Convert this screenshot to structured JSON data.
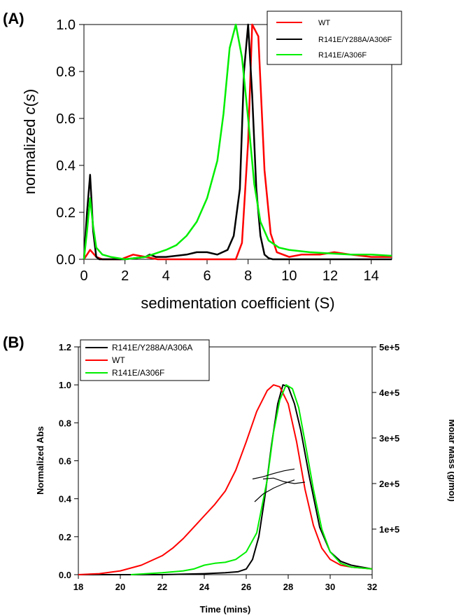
{
  "chart_data": [
    {
      "panel_label": "(A)",
      "type": "line",
      "xlabel": "sedimentation coefficient (S)",
      "ylabel_prefix": "normalized ",
      "ylabel_italic": "c",
      "ylabel_paren_open": "(",
      "ylabel_s": "s",
      "ylabel_paren_close": ")",
      "xlim": [
        0,
        15
      ],
      "ylim": [
        0,
        1.0
      ],
      "xticks": [
        "0",
        "2",
        "4",
        "6",
        "8",
        "10",
        "12",
        "14"
      ],
      "xtick_values": [
        0,
        2,
        4,
        6,
        8,
        10,
        12,
        14
      ],
      "yticks": [
        "0.0",
        "0.2",
        "0.4",
        "0.6",
        "0.8",
        "1.0"
      ],
      "ytick_values": [
        0,
        0.2,
        0.4,
        0.6,
        0.8,
        1.0
      ],
      "legend_position": "top-right",
      "series": [
        {
          "name": "WT",
          "color": "#ff0000",
          "x": [
            0,
            0.3,
            0.6,
            0.9,
            1.2,
            1.8,
            2.4,
            3.0,
            3.6,
            4.2,
            4.8,
            5.4,
            6.0,
            6.6,
            7.0,
            7.4,
            7.7,
            8.0,
            8.2,
            8.5,
            8.8,
            9.1,
            9.4,
            10.0,
            10.6,
            11.5,
            12.2,
            13.0,
            14.0,
            15.0
          ],
          "y": [
            0.0,
            0.04,
            0.01,
            0.0,
            0.0,
            0.0,
            0.02,
            0.01,
            0.0,
            0.0,
            0.0,
            0.0,
            0.0,
            0.0,
            0.0,
            0.0,
            0.07,
            0.5,
            1.0,
            0.95,
            0.38,
            0.11,
            0.03,
            0.01,
            0.02,
            0.02,
            0.03,
            0.02,
            0.01,
            0.01
          ]
        },
        {
          "name": "R141E/Y288A/A306F",
          "color": "#000000",
          "x": [
            0,
            0.15,
            0.3,
            0.45,
            0.6,
            0.75,
            1.0,
            2.0,
            3.0,
            3.2,
            3.5,
            4.0,
            5.0,
            5.5,
            6.0,
            6.5,
            7.0,
            7.3,
            7.6,
            7.8,
            8.0,
            8.2,
            8.4,
            8.6,
            8.8,
            9.0,
            9.2,
            9.5,
            10.0,
            15.0
          ],
          "y": [
            0.0,
            0.2,
            0.36,
            0.12,
            0.01,
            0.0,
            0.0,
            0.0,
            0.01,
            0.02,
            0.01,
            0.01,
            0.02,
            0.03,
            0.03,
            0.02,
            0.04,
            0.1,
            0.3,
            0.8,
            1.0,
            0.7,
            0.3,
            0.1,
            0.02,
            0.005,
            0.0,
            0.0,
            0.0,
            0.0
          ]
        },
        {
          "name": "R141E/A306F",
          "color": "#00ee00",
          "x": [
            0,
            0.15,
            0.3,
            0.45,
            0.6,
            0.9,
            1.3,
            2.0,
            3.0,
            4.0,
            4.5,
            5.0,
            5.5,
            6.0,
            6.5,
            6.8,
            7.1,
            7.4,
            7.7,
            8.0,
            8.3,
            8.6,
            9.0,
            9.5,
            10.0,
            11.0,
            12.0,
            13.0,
            14.0,
            15.0
          ],
          "y": [
            0.0,
            0.12,
            0.26,
            0.14,
            0.05,
            0.02,
            0.01,
            0.0,
            0.01,
            0.04,
            0.06,
            0.1,
            0.16,
            0.26,
            0.42,
            0.62,
            0.9,
            1.0,
            0.86,
            0.6,
            0.32,
            0.16,
            0.08,
            0.05,
            0.04,
            0.03,
            0.025,
            0.02,
            0.02,
            0.015
          ]
        }
      ]
    },
    {
      "panel_label": "(B)",
      "type": "line",
      "xlabel": "Time (mins)",
      "ylabel": "Normalized Abs",
      "y2label": "Molar Mass (g/mol)",
      "xlim": [
        18,
        32
      ],
      "ylim": [
        0,
        1.2
      ],
      "y2lim": [
        0,
        500000
      ],
      "xticks": [
        "18",
        "20",
        "22",
        "24",
        "26",
        "28",
        "30",
        "32"
      ],
      "xtick_values": [
        18,
        20,
        22,
        24,
        26,
        28,
        30,
        32
      ],
      "yticks": [
        "0.0",
        "0.2",
        "0.4",
        "0.6",
        "0.8",
        "1.0",
        "1.2"
      ],
      "ytick_values": [
        0,
        0.2,
        0.4,
        0.6,
        0.8,
        1.0,
        1.2
      ],
      "y2ticks": [
        "1e+5",
        "2e+5",
        "3e+5",
        "4e+5",
        "5e+5"
      ],
      "y2tick_values": [
        100000,
        200000,
        300000,
        400000,
        500000
      ],
      "legend_position": "top-left",
      "series": [
        {
          "name": "R141E/Y288A/A306A",
          "color": "#000000",
          "x": [
            18,
            22,
            24,
            25,
            25.6,
            26.0,
            26.3,
            26.6,
            26.9,
            27.2,
            27.5,
            27.75,
            28.0,
            28.3,
            28.6,
            29.0,
            29.5,
            30.0,
            30.5,
            31.0,
            32.0
          ],
          "y": [
            0.0,
            0.0,
            0.005,
            0.01,
            0.015,
            0.03,
            0.08,
            0.2,
            0.42,
            0.68,
            0.9,
            1.0,
            0.99,
            0.9,
            0.76,
            0.52,
            0.25,
            0.12,
            0.07,
            0.05,
            0.03
          ]
        },
        {
          "name": "WT",
          "color": "#ff0000",
          "x": [
            18,
            19,
            20,
            21,
            22,
            22.5,
            23,
            23.5,
            24,
            24.5,
            25,
            25.5,
            26,
            26.5,
            27,
            27.3,
            27.6,
            28.0,
            28.4,
            28.8,
            29.2,
            29.6,
            30.0,
            30.5,
            31.0,
            32.0
          ],
          "y": [
            0.0,
            0.005,
            0.02,
            0.05,
            0.1,
            0.14,
            0.19,
            0.25,
            0.31,
            0.37,
            0.44,
            0.55,
            0.7,
            0.86,
            0.97,
            1.0,
            0.99,
            0.9,
            0.7,
            0.45,
            0.26,
            0.14,
            0.08,
            0.05,
            0.04,
            0.03
          ]
        },
        {
          "name": "R141E/A306F",
          "color": "#00ee00",
          "x": [
            20.5,
            22,
            23,
            23.5,
            24,
            24.5,
            25,
            25.5,
            26,
            26.5,
            27,
            27.3,
            27.6,
            27.9,
            28.2,
            28.5,
            28.8,
            29.2,
            29.6,
            30.0,
            30.5,
            31.0,
            32.0
          ],
          "y": [
            0.0,
            0.01,
            0.02,
            0.03,
            0.05,
            0.06,
            0.065,
            0.08,
            0.12,
            0.22,
            0.5,
            0.75,
            0.92,
            1.0,
            0.98,
            0.88,
            0.7,
            0.45,
            0.24,
            0.12,
            0.06,
            0.04,
            0.03
          ]
        }
      ],
      "molar_mass_traces": [
        {
          "x": [
            26.3,
            26.8,
            27.3,
            27.8,
            28.3
          ],
          "y2": [
            210000,
            215000,
            222000,
            228000,
            232000
          ]
        },
        {
          "x": [
            26.8,
            27.3,
            27.8,
            28.3,
            28.8
          ],
          "y2": [
            210000,
            212000,
            204000,
            200000,
            203000
          ]
        },
        {
          "x": [
            26.4,
            26.8,
            27.3,
            27.8,
            28.3
          ],
          "y2": [
            160000,
            177000,
            190000,
            200000,
            208000
          ]
        }
      ]
    }
  ]
}
